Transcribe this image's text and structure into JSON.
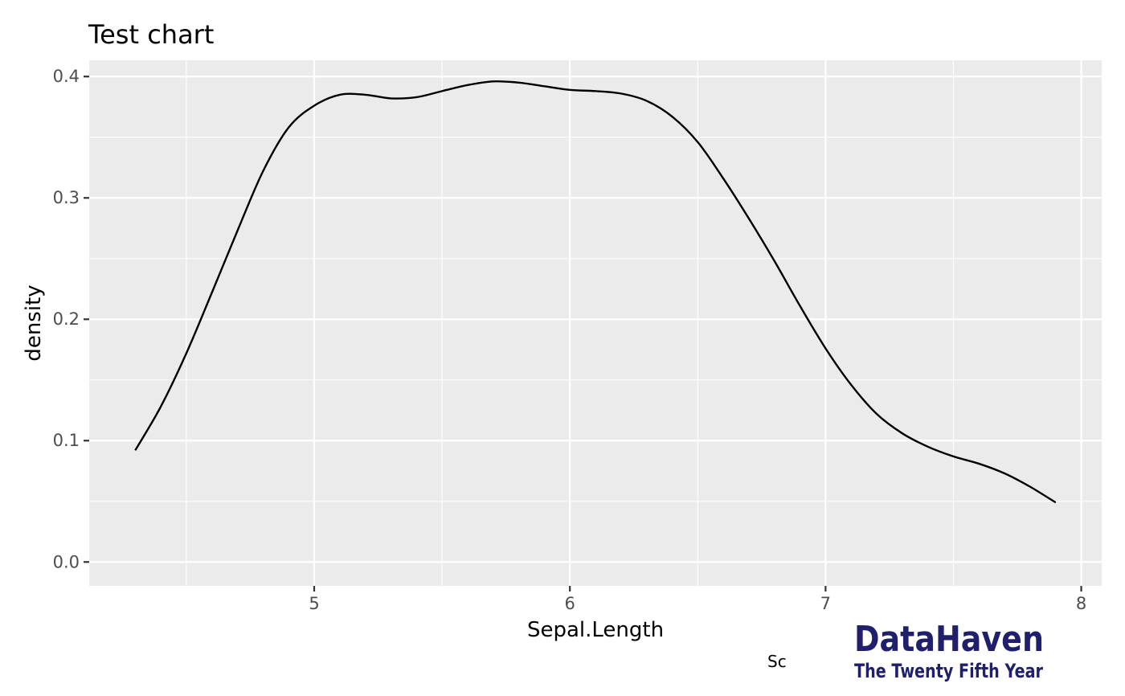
{
  "chart_data": {
    "type": "line",
    "title": "Test chart",
    "xlabel": "Sepal.Length",
    "ylabel": "density",
    "caption": "Sc",
    "xlim": [
      4.12,
      8.08
    ],
    "ylim": [
      -0.0197,
      0.4134
    ],
    "x_ticks": [
      5,
      6,
      7,
      8
    ],
    "y_ticks": [
      0.0,
      0.1,
      0.2,
      0.3,
      0.4
    ],
    "x_tick_labels": [
      "5",
      "6",
      "7",
      "8"
    ],
    "y_tick_labels": [
      "0.0",
      "0.1",
      "0.2",
      "0.3",
      "0.4"
    ],
    "grid": true,
    "background": "#ebebeb",
    "line_color": "#000000",
    "series": [
      {
        "x": [
          4.3,
          4.4,
          4.5,
          4.6,
          4.7,
          4.8,
          4.9,
          5.0,
          5.1,
          5.2,
          5.3,
          5.4,
          5.5,
          5.6,
          5.7,
          5.8,
          5.9,
          6.0,
          6.1,
          6.2,
          6.3,
          6.4,
          6.5,
          6.6,
          6.7,
          6.8,
          6.9,
          7.0,
          7.1,
          7.2,
          7.3,
          7.4,
          7.5,
          7.6,
          7.7,
          7.8,
          7.9
        ],
        "y": [
          0.092,
          0.128,
          0.172,
          0.222,
          0.273,
          0.322,
          0.358,
          0.376,
          0.385,
          0.385,
          0.382,
          0.383,
          0.388,
          0.393,
          0.396,
          0.395,
          0.392,
          0.389,
          0.388,
          0.386,
          0.38,
          0.367,
          0.346,
          0.316,
          0.283,
          0.248,
          0.211,
          0.176,
          0.146,
          0.122,
          0.106,
          0.095,
          0.087,
          0.081,
          0.073,
          0.062,
          0.049
        ]
      }
    ]
  },
  "logo": {
    "name": "DataHaven",
    "tagline": "The Twenty Fifth Year",
    "color": "#1f1f6b"
  }
}
